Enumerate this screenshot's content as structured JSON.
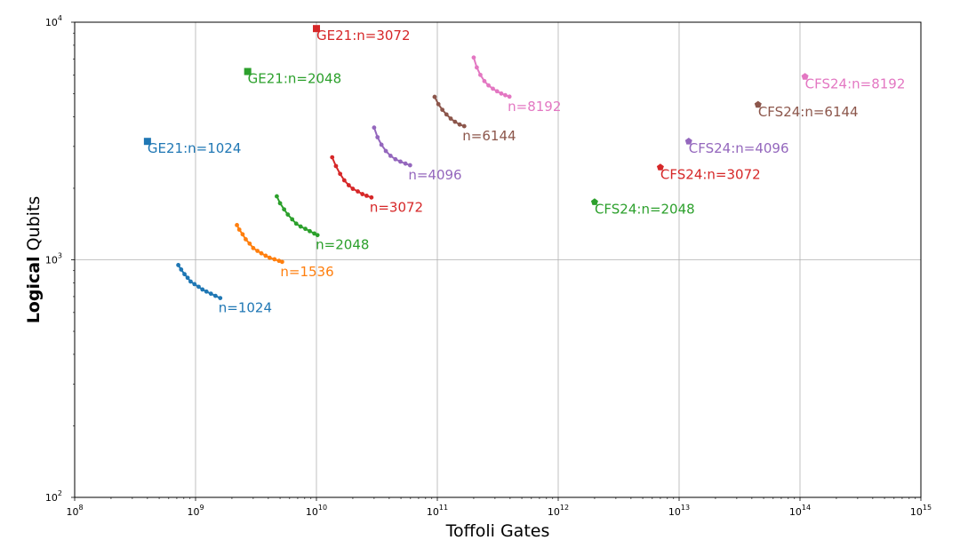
{
  "chart_data": {
    "type": "scatter",
    "title": "",
    "xlabel": "Toffoli Gates",
    "ylabel_bold": "Logical",
    "ylabel_rest": " Qubits",
    "xscale": "log",
    "yscale": "log",
    "xlim": [
      100000000.0,
      1000000000000000.0
    ],
    "ylim": [
      100,
      10000
    ],
    "grid": true,
    "x_ticks": [
      {
        "base": "10",
        "exp": "8"
      },
      {
        "base": "10",
        "exp": "9"
      },
      {
        "base": "10",
        "exp": "10"
      },
      {
        "base": "10",
        "exp": "11"
      },
      {
        "base": "10",
        "exp": "12"
      },
      {
        "base": "10",
        "exp": "13"
      },
      {
        "base": "10",
        "exp": "14"
      },
      {
        "base": "10",
        "exp": "15"
      }
    ],
    "y_ticks": [
      {
        "base": "10",
        "exp": "2"
      },
      {
        "base": "10",
        "exp": "3"
      },
      {
        "base": "10",
        "exp": "4"
      }
    ],
    "series": [
      {
        "label": "n=1024",
        "color": "#1f77b4",
        "marker": "dot",
        "x": [
          720000000.0,
          760000000.0,
          810000000.0,
          860000000.0,
          910000000.0,
          980000000.0,
          1060000000.0,
          1140000000.0,
          1230000000.0,
          1340000000.0,
          1460000000.0,
          1600000000.0
        ],
        "y": [
          950,
          910,
          870,
          840,
          810,
          790,
          770,
          750,
          735,
          720,
          705,
          690
        ]
      },
      {
        "label": "n=1536",
        "color": "#ff7f0e",
        "marker": "dot",
        "x": [
          2200000000.0,
          2300000000.0,
          2450000000.0,
          2600000000.0,
          2800000000.0,
          3000000000.0,
          3250000000.0,
          3500000000.0,
          3800000000.0,
          4100000000.0,
          4500000000.0,
          4900000000.0,
          5200000000.0
        ],
        "y": [
          1400,
          1340,
          1280,
          1220,
          1170,
          1120,
          1090,
          1065,
          1040,
          1020,
          1005,
          990,
          980
        ]
      },
      {
        "label": "n=2048",
        "color": "#2ca02c",
        "marker": "dot",
        "x": [
          4700000000.0,
          5000000000.0,
          5400000000.0,
          5800000000.0,
          6300000000.0,
          6800000000.0,
          7400000000.0,
          8100000000.0,
          8800000000.0,
          9600000000.0,
          10200000000.0
        ],
        "y": [
          1850,
          1730,
          1630,
          1550,
          1480,
          1420,
          1380,
          1350,
          1320,
          1290,
          1270
        ]
      },
      {
        "label": "n=3072",
        "color": "#d62728",
        "marker": "dot",
        "x": [
          13500000000.0,
          14500000000.0,
          15700000000.0,
          17000000000.0,
          18500000000.0,
          20000000000.0,
          22000000000.0,
          24000000000.0,
          26000000000.0,
          28500000000.0
        ],
        "y": [
          2700,
          2480,
          2300,
          2160,
          2060,
          1990,
          1940,
          1890,
          1860,
          1830
        ]
      },
      {
        "label": "n=4096",
        "color": "#9467bd",
        "marker": "dot",
        "x": [
          30000000000.0,
          32000000000.0,
          34500000000.0,
          37500000000.0,
          41000000000.0,
          45000000000.0,
          49500000000.0,
          54500000000.0,
          59500000000.0
        ],
        "y": [
          3600,
          3280,
          3050,
          2870,
          2740,
          2650,
          2590,
          2540,
          2500
        ]
      },
      {
        "label": "n=6144",
        "color": "#8c564b",
        "marker": "dot",
        "x": [
          95000000000.0,
          102000000000.0,
          110000000000.0,
          119000000000.0,
          129000000000.0,
          140000000000.0,
          153000000000.0,
          167000000000.0
        ],
        "y": [
          4850,
          4520,
          4280,
          4090,
          3930,
          3810,
          3710,
          3650
        ]
      },
      {
        "label": "n=8192",
        "color": "#e377c2",
        "marker": "dot",
        "x": [
          200000000000.0,
          212000000000.0,
          227000000000.0,
          245000000000.0,
          265000000000.0,
          288000000000.0,
          312000000000.0,
          338000000000.0,
          365000000000.0,
          395000000000.0
        ],
        "y": [
          7100,
          6450,
          6000,
          5650,
          5420,
          5250,
          5120,
          5010,
          4930,
          4860
        ]
      }
    ],
    "points": [
      {
        "label": "GE21:n=1024",
        "color": "#1f77b4",
        "marker": "square",
        "x": 400000000.0,
        "y": 3150
      },
      {
        "label": "GE21:n=2048",
        "color": "#2ca02c",
        "marker": "square",
        "x": 2700000000.0,
        "y": 6200
      },
      {
        "label": "GE21:n=3072",
        "color": "#d62728",
        "marker": "square",
        "x": 10000000000.0,
        "y": 9400
      },
      {
        "label": "CFS24:n=2048",
        "color": "#2ca02c",
        "marker": "pentagon",
        "x": 2000000000000.0,
        "y": 1750
      },
      {
        "label": "CFS24:n=3072",
        "color": "#d62728",
        "marker": "pentagon",
        "x": 7000000000000.0,
        "y": 2450
      },
      {
        "label": "CFS24:n=4096",
        "color": "#9467bd",
        "marker": "pentagon",
        "x": 12000000000000.0,
        "y": 3150
      },
      {
        "label": "CFS24:n=6144",
        "color": "#8c564b",
        "marker": "pentagon",
        "x": 45000000000000.0,
        "y": 4500
      },
      {
        "label": "CFS24:n=8192",
        "color": "#e377c2",
        "marker": "pentagon",
        "x": 110000000000000.0,
        "y": 5900
      }
    ]
  }
}
